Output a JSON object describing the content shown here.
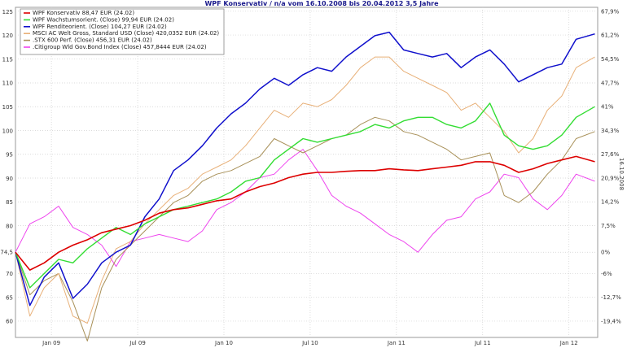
{
  "chart_data": {
    "type": "line",
    "title": "WPF Konservativ / n/a vom 16.10.2008 bis 20.04.2012 3,5 Jahre",
    "side_label": "16.10.2008",
    "x_tick_labels": [
      "Jan 09",
      "Jul 09",
      "Jan 10",
      "Jul 10",
      "Jan 11",
      "Jul 11",
      "Jan 12"
    ],
    "x_tick_months": [
      2.5,
      8.5,
      14.5,
      20.5,
      26.5,
      32.5,
      38.5
    ],
    "x_range_months": [
      0,
      40.5
    ],
    "y_left_ticks": [
      60,
      65,
      70,
      74.5,
      80,
      85,
      90,
      95,
      100,
      105,
      110,
      115,
      120,
      125
    ],
    "y_left_tick_labels": [
      "60",
      "65",
      "70",
      "74,5",
      "80",
      "85",
      "90",
      "95",
      "100",
      "105",
      "110",
      "115",
      "120",
      "125"
    ],
    "y_right_ticks": [
      -19.4,
      -12.7,
      -6,
      0,
      7.5,
      14.2,
      20.9,
      27.6,
      34.3,
      41,
      47.7,
      54.5,
      61.2,
      67.9
    ],
    "y_right_tick_labels": [
      "-19,4%",
      "-12,7%",
      "-6%",
      "0%",
      "7,5%",
      "14,2%",
      "20,9%",
      "27,6%",
      "34,3%",
      "41%",
      "47,7%",
      "54,5%",
      "61,2%",
      "67,9%"
    ],
    "y_range_pct": [
      -24,
      69
    ],
    "x_grid": true,
    "y_grid": true,
    "legend_position": "top-left",
    "series": [
      {
        "name": "WPF Konservativ 88,47 EUR (24.02)",
        "color": "#dd0000",
        "width": 1.6,
        "x": [
          0,
          1,
          2,
          3,
          4,
          5,
          6,
          7,
          8,
          9,
          10,
          11,
          12,
          13,
          14,
          15,
          16,
          17,
          18,
          19,
          20,
          21,
          22,
          23,
          24,
          25,
          26,
          27,
          28,
          29,
          30,
          31,
          32,
          33,
          34,
          35,
          36,
          37,
          38,
          39,
          40.3
        ],
        "y": [
          0,
          -5,
          -3,
          0,
          2,
          3.5,
          5.5,
          6.5,
          7.5,
          9,
          11,
          12,
          12.5,
          13.5,
          14.5,
          15,
          17,
          18.5,
          19.5,
          21,
          22,
          22.5,
          22.5,
          22.8,
          23,
          23,
          23.5,
          23.2,
          23,
          23.5,
          24,
          24.5,
          25.5,
          25.5,
          24.5,
          22.5,
          23.5,
          25,
          26,
          27,
          25.5
        ]
      },
      {
        "name": "WPF Wachstumsorient. (Close) 99,94 EUR (24.02)",
        "color": "#33dd33",
        "width": 1.4,
        "x": [
          0,
          1,
          2,
          3,
          4,
          5,
          6,
          7,
          8,
          9,
          10,
          11,
          12,
          13,
          14,
          15,
          16,
          17,
          18,
          19,
          20,
          21,
          22,
          23,
          24,
          25,
          26,
          27,
          28,
          29,
          30,
          31,
          32,
          33,
          34,
          35,
          36,
          37,
          38,
          39,
          40.3
        ],
        "y": [
          0,
          -10,
          -6,
          -2,
          -3,
          1,
          4,
          7,
          5,
          8,
          10,
          12,
          13,
          14,
          15,
          17,
          20,
          21,
          26,
          29,
          32,
          31,
          32,
          33,
          34,
          36,
          35,
          37,
          38,
          38,
          36,
          35,
          37,
          42,
          33,
          30,
          29,
          30,
          33,
          38,
          41
        ]
      },
      {
        "name": "WPF Renditeorient. (Close) 104,27 EUR (24.02)",
        "color": "#1010cc",
        "width": 1.5,
        "x": [
          0,
          1,
          2,
          3,
          4,
          5,
          6,
          7,
          8,
          9,
          10,
          11,
          12,
          13,
          14,
          15,
          16,
          17,
          18,
          19,
          20,
          21,
          22,
          23,
          24,
          25,
          26,
          27,
          28,
          29,
          30,
          31,
          32,
          33,
          34,
          35,
          36,
          37,
          38,
          39,
          40.3
        ],
        "y": [
          0,
          -15,
          -7,
          -3,
          -13,
          -9,
          -3,
          0,
          2,
          10,
          15,
          23,
          26,
          30,
          35,
          39,
          42,
          46,
          49,
          47,
          50,
          52,
          51,
          55,
          58,
          61,
          62,
          57,
          56,
          55,
          56,
          52,
          55,
          57,
          53,
          48,
          50,
          52,
          53,
          60,
          61.5
        ]
      },
      {
        "name": "MSCI AC Welt Gross, Standard USD (Close) 420,0352 EUR (24.02)",
        "color": "#e8b078",
        "width": 1,
        "x": [
          0,
          1,
          2,
          3,
          4,
          5,
          6,
          7,
          8,
          9,
          10,
          11,
          12,
          13,
          14,
          15,
          16,
          17,
          18,
          19,
          20,
          21,
          22,
          23,
          24,
          25,
          26,
          27,
          28,
          29,
          30,
          31,
          32,
          33,
          34,
          35,
          36,
          37,
          38,
          39,
          40.3
        ],
        "y": [
          0,
          -18,
          -10,
          -6,
          -18,
          -20,
          -8,
          1,
          3,
          8,
          12,
          16,
          18,
          22,
          24,
          26,
          30,
          35,
          40,
          38,
          42,
          41,
          43,
          47,
          52,
          55,
          55,
          51,
          49,
          47,
          45,
          40,
          42,
          38,
          34,
          28,
          32,
          40,
          44,
          52,
          55
        ]
      },
      {
        "name": ".STX 600 Perf. (Close) 456,31 EUR (24.02)",
        "color": "#a89058",
        "width": 1,
        "x": [
          0,
          1,
          2,
          3,
          4,
          5,
          6,
          7,
          8,
          9,
          10,
          11,
          12,
          13,
          14,
          15,
          16,
          17,
          18,
          19,
          20,
          21,
          22,
          23,
          24,
          25,
          26,
          27,
          28,
          29,
          30,
          31,
          32,
          33,
          34,
          35,
          36,
          37,
          38,
          39,
          40.3
        ],
        "y": [
          0,
          -12,
          -8,
          -6,
          -14,
          -25,
          -10,
          -2,
          2,
          6,
          10,
          14,
          16,
          20,
          22,
          23,
          25,
          27,
          32,
          30,
          28,
          30,
          32,
          33,
          36,
          38,
          37,
          34,
          33,
          31,
          29,
          26,
          27,
          28,
          16,
          14,
          17,
          22,
          26,
          32,
          34
        ]
      },
      {
        "name": ".Citigroup Wld Gov.Bond Index (Close) 457,8444 EUR (24.02)",
        "color": "#ee44ee",
        "width": 1,
        "x": [
          0,
          1,
          2,
          3,
          4,
          5,
          6,
          7,
          8,
          9,
          10,
          11,
          12,
          13,
          14,
          15,
          16,
          17,
          18,
          19,
          20,
          21,
          22,
          23,
          24,
          25,
          26,
          27,
          28,
          29,
          30,
          31,
          32,
          33,
          34,
          35,
          36,
          37,
          38,
          39,
          40.3
        ],
        "y": [
          0,
          8,
          10,
          13,
          7,
          5,
          2,
          -4,
          3,
          4,
          5,
          4,
          3,
          6,
          12,
          14,
          17,
          21,
          22,
          26,
          29,
          23,
          16,
          13,
          11,
          8,
          5,
          3,
          0,
          5,
          9,
          10,
          15,
          17,
          22,
          21,
          15,
          12,
          16,
          22,
          20
        ]
      }
    ]
  }
}
